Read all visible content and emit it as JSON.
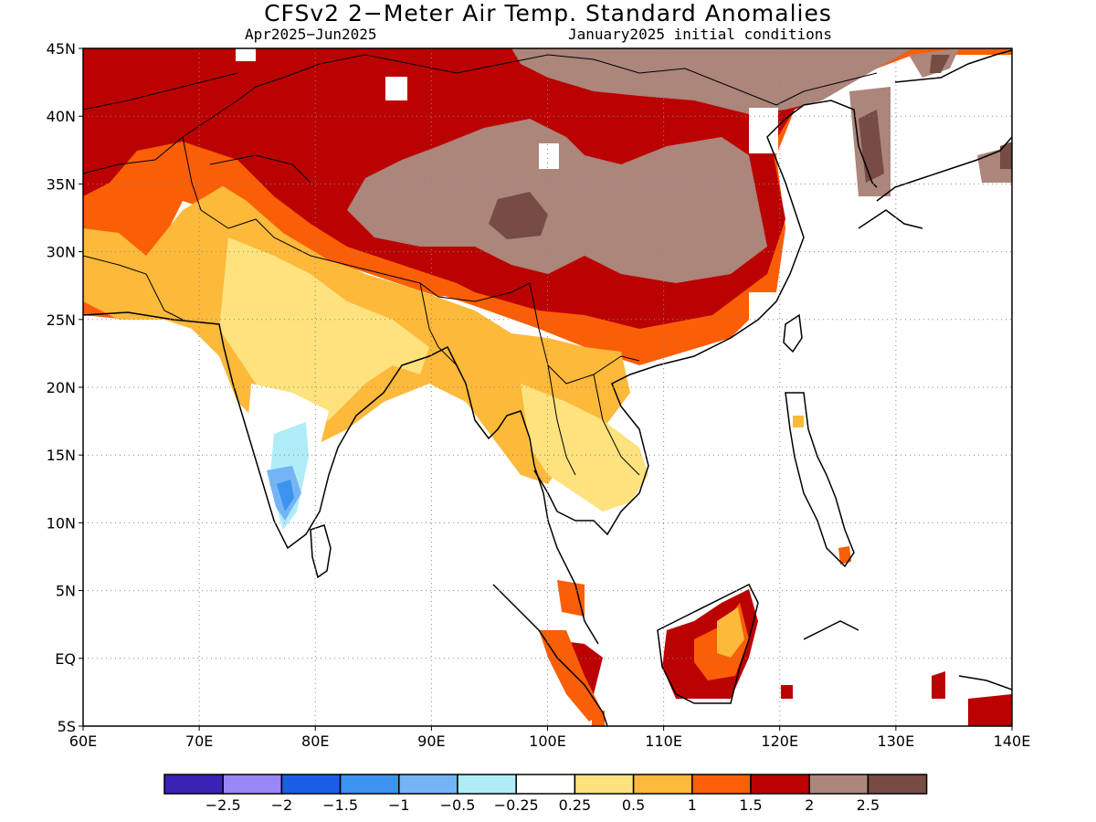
{
  "header": {
    "title": "CFSv2 2−Meter Air Temp. Standard Anomalies",
    "period": "Apr2025−Jun2025",
    "initial_conditions": "January2025 initial conditions"
  },
  "map": {
    "lat_labels": [
      "45N",
      "40N",
      "35N",
      "30N",
      "25N",
      "20N",
      "15N",
      "10N",
      "5N",
      "EQ",
      "5S"
    ],
    "lon_labels": [
      "60E",
      "70E",
      "80E",
      "90E",
      "100E",
      "110E",
      "120E",
      "130E",
      "140E"
    ],
    "lat_range": [
      -5,
      45
    ],
    "lon_range": [
      60,
      140
    ]
  },
  "legend": {
    "colors": [
      "#3a22b4",
      "#9a86f4",
      "#1b5ee6",
      "#3c92ef",
      "#74b4f5",
      "#b0ecf8",
      "#ffffff",
      "#fde27d",
      "#fdb93a",
      "#fa5e07",
      "#bb0202",
      "#ac857b",
      "#764c45"
    ],
    "labels": [
      "−2.5",
      "−2",
      "−1.5",
      "−1",
      "−0.5",
      "−0.25",
      "0.25",
      "0.5",
      "1",
      "1.5",
      "2",
      "2.5"
    ]
  }
}
